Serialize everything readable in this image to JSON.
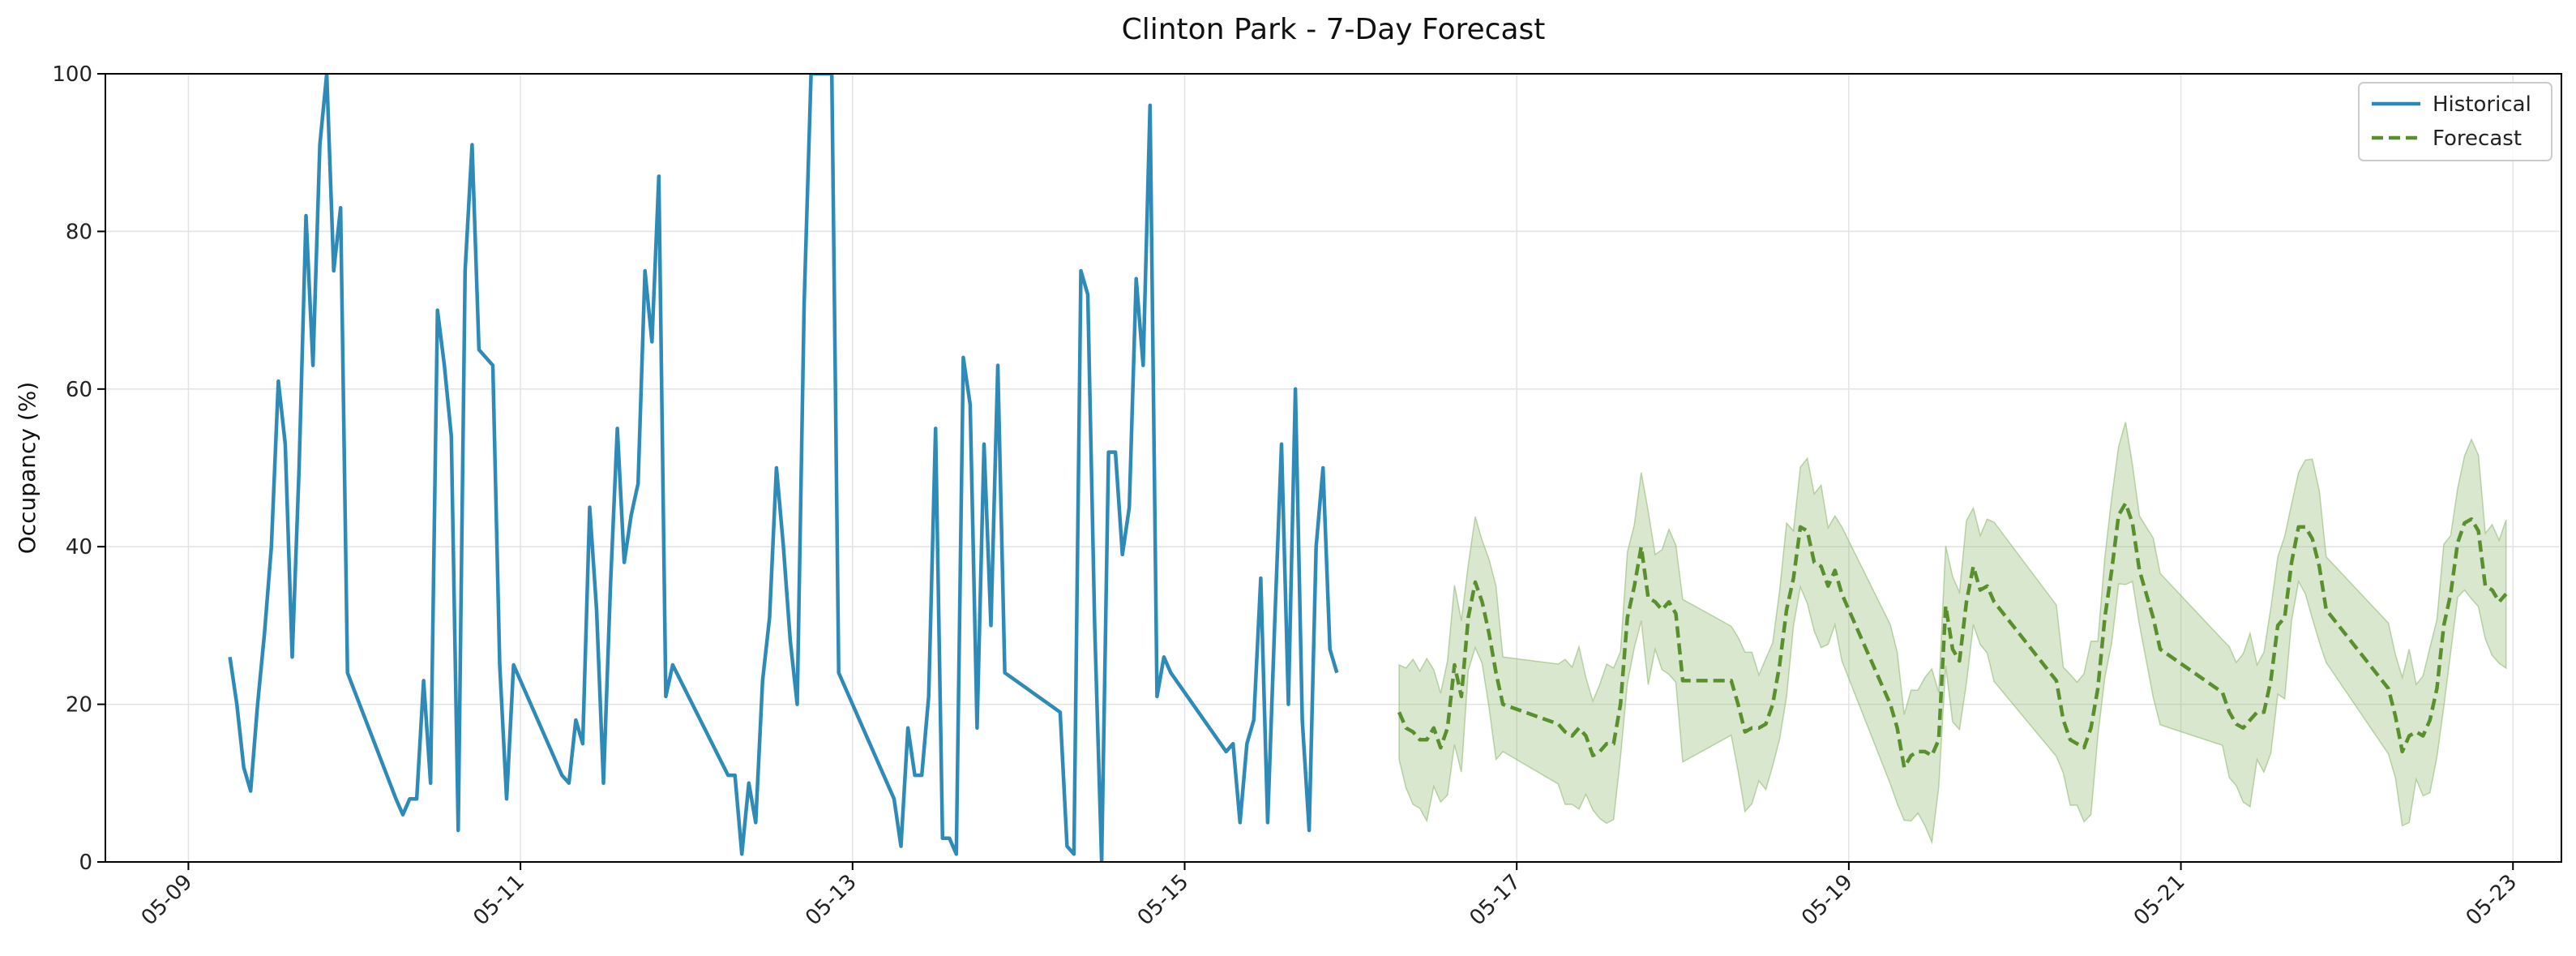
{
  "chart_data": {
    "type": "line",
    "title": "Clinton Park - 7-Day Forecast",
    "xlabel": "",
    "ylabel": "Occupancy (%)",
    "ylim": [
      0,
      100
    ],
    "xlim": [
      "2025-05-08 12:00",
      "2025-05-23 07:00"
    ],
    "x_ticks": [
      "05-09",
      "05-11",
      "05-13",
      "05-15",
      "05-17",
      "05-19",
      "05-21",
      "05-23"
    ],
    "y_ticks": [
      0,
      20,
      40,
      60,
      80,
      100
    ],
    "grid": true,
    "legend_position": "top-right",
    "colors": {
      "historical": "#2e8bb8",
      "forecast": "#5a8f2e",
      "band": "#8ab56a"
    },
    "series": [
      {
        "name": "Historical",
        "style": "solid",
        "points": [
          [
            "2025-05-09 06:00",
            26
          ],
          [
            "2025-05-09 07:00",
            20
          ],
          [
            "2025-05-09 08:00",
            12
          ],
          [
            "2025-05-09 09:00",
            9
          ],
          [
            "2025-05-09 10:00",
            20
          ],
          [
            "2025-05-09 11:00",
            29
          ],
          [
            "2025-05-09 12:00",
            40
          ],
          [
            "2025-05-09 13:00",
            61
          ],
          [
            "2025-05-09 14:00",
            53
          ],
          [
            "2025-05-09 15:00",
            26
          ],
          [
            "2025-05-09 16:00",
            50
          ],
          [
            "2025-05-09 17:00",
            82
          ],
          [
            "2025-05-09 18:00",
            63
          ],
          [
            "2025-05-09 19:00",
            91
          ],
          [
            "2025-05-09 20:00",
            100
          ],
          [
            "2025-05-09 21:00",
            75
          ],
          [
            "2025-05-09 22:00",
            83
          ],
          [
            "2025-05-09 23:00",
            24
          ],
          [
            "2025-05-10 06:00",
            8
          ],
          [
            "2025-05-10 07:00",
            6
          ],
          [
            "2025-05-10 08:00",
            8
          ],
          [
            "2025-05-10 09:00",
            8
          ],
          [
            "2025-05-10 10:00",
            23
          ],
          [
            "2025-05-10 11:00",
            10
          ],
          [
            "2025-05-10 12:00",
            70
          ],
          [
            "2025-05-10 13:00",
            63
          ],
          [
            "2025-05-10 14:00",
            54
          ],
          [
            "2025-05-10 15:00",
            4
          ],
          [
            "2025-05-10 16:00",
            75
          ],
          [
            "2025-05-10 17:00",
            91
          ],
          [
            "2025-05-10 18:00",
            65
          ],
          [
            "2025-05-10 20:00",
            63
          ],
          [
            "2025-05-10 21:00",
            25
          ],
          [
            "2025-05-10 22:00",
            8
          ],
          [
            "2025-05-10 23:00",
            25
          ],
          [
            "2025-05-11 06:00",
            11
          ],
          [
            "2025-05-11 07:00",
            10
          ],
          [
            "2025-05-11 08:00",
            18
          ],
          [
            "2025-05-11 09:00",
            15
          ],
          [
            "2025-05-11 10:00",
            45
          ],
          [
            "2025-05-11 11:00",
            32
          ],
          [
            "2025-05-11 12:00",
            10
          ],
          [
            "2025-05-11 13:00",
            35
          ],
          [
            "2025-05-11 14:00",
            55
          ],
          [
            "2025-05-11 15:00",
            38
          ],
          [
            "2025-05-11 16:00",
            44
          ],
          [
            "2025-05-11 17:00",
            48
          ],
          [
            "2025-05-11 18:00",
            75
          ],
          [
            "2025-05-11 19:00",
            66
          ],
          [
            "2025-05-11 20:00",
            87
          ],
          [
            "2025-05-11 21:00",
            21
          ],
          [
            "2025-05-11 22:00",
            25
          ],
          [
            "2025-05-12 06:00",
            11
          ],
          [
            "2025-05-12 07:00",
            11
          ],
          [
            "2025-05-12 08:00",
            1
          ],
          [
            "2025-05-12 09:00",
            10
          ],
          [
            "2025-05-12 10:00",
            5
          ],
          [
            "2025-05-12 11:00",
            23
          ],
          [
            "2025-05-12 12:00",
            31
          ],
          [
            "2025-05-12 13:00",
            50
          ],
          [
            "2025-05-12 14:00",
            40
          ],
          [
            "2025-05-12 15:00",
            28
          ],
          [
            "2025-05-12 16:00",
            20
          ],
          [
            "2025-05-12 17:00",
            71
          ],
          [
            "2025-05-12 18:00",
            100
          ],
          [
            "2025-05-12 19:00",
            100
          ],
          [
            "2025-05-12 20:00",
            100
          ],
          [
            "2025-05-12 21:00",
            100
          ],
          [
            "2025-05-12 22:00",
            24
          ],
          [
            "2025-05-13 06:00",
            8
          ],
          [
            "2025-05-13 07:00",
            2
          ],
          [
            "2025-05-13 08:00",
            17
          ],
          [
            "2025-05-13 09:00",
            11
          ],
          [
            "2025-05-13 10:00",
            11
          ],
          [
            "2025-05-13 11:00",
            21
          ],
          [
            "2025-05-13 12:00",
            55
          ],
          [
            "2025-05-13 13:00",
            3
          ],
          [
            "2025-05-13 14:00",
            3
          ],
          [
            "2025-05-13 15:00",
            1
          ],
          [
            "2025-05-13 16:00",
            64
          ],
          [
            "2025-05-13 17:00",
            58
          ],
          [
            "2025-05-13 18:00",
            17
          ],
          [
            "2025-05-13 19:00",
            53
          ],
          [
            "2025-05-13 20:00",
            30
          ],
          [
            "2025-05-13 21:00",
            63
          ],
          [
            "2025-05-13 22:00",
            24
          ],
          [
            "2025-05-14 06:00",
            19
          ],
          [
            "2025-05-14 07:00",
            2
          ],
          [
            "2025-05-14 08:00",
            1
          ],
          [
            "2025-05-14 09:00",
            75
          ],
          [
            "2025-05-14 10:00",
            72
          ],
          [
            "2025-05-14 11:00",
            30
          ],
          [
            "2025-05-14 12:00",
            0
          ],
          [
            "2025-05-14 13:00",
            52
          ],
          [
            "2025-05-14 14:00",
            52
          ],
          [
            "2025-05-14 15:00",
            39
          ],
          [
            "2025-05-14 16:00",
            45
          ],
          [
            "2025-05-14 17:00",
            74
          ],
          [
            "2025-05-14 18:00",
            63
          ],
          [
            "2025-05-14 19:00",
            96
          ],
          [
            "2025-05-14 20:00",
            21
          ],
          [
            "2025-05-14 21:00",
            26
          ],
          [
            "2025-05-14 22:00",
            24
          ],
          [
            "2025-05-15 06:00",
            14
          ],
          [
            "2025-05-15 07:00",
            15
          ],
          [
            "2025-05-15 08:00",
            5
          ],
          [
            "2025-05-15 09:00",
            15
          ],
          [
            "2025-05-15 10:00",
            18
          ],
          [
            "2025-05-15 11:00",
            36
          ],
          [
            "2025-05-15 12:00",
            5
          ],
          [
            "2025-05-15 13:00",
            30
          ],
          [
            "2025-05-15 14:00",
            53
          ],
          [
            "2025-05-15 15:00",
            20
          ],
          [
            "2025-05-15 16:00",
            60
          ],
          [
            "2025-05-15 17:00",
            18
          ],
          [
            "2025-05-15 18:00",
            4
          ],
          [
            "2025-05-15 19:00",
            40
          ],
          [
            "2025-05-15 20:00",
            50
          ],
          [
            "2025-05-15 21:00",
            27
          ],
          [
            "2025-05-15 22:00",
            24
          ]
        ]
      },
      {
        "name": "Forecast",
        "style": "dashed",
        "points": [
          [
            "2025-05-16 07:00",
            19
          ],
          [
            "2025-05-16 08:00",
            17
          ],
          [
            "2025-05-16 09:00",
            16.5
          ],
          [
            "2025-05-16 10:00",
            15.5
          ],
          [
            "2025-05-16 11:00",
            15.5
          ],
          [
            "2025-05-16 12:00",
            17
          ],
          [
            "2025-05-16 13:00",
            14.5
          ],
          [
            "2025-05-16 14:00",
            17
          ],
          [
            "2025-05-16 15:00",
            25
          ],
          [
            "2025-05-16 16:00",
            21
          ],
          [
            "2025-05-16 17:00",
            31
          ],
          [
            "2025-05-16 18:00",
            35.5
          ],
          [
            "2025-05-16 19:00",
            33
          ],
          [
            "2025-05-16 20:00",
            29
          ],
          [
            "2025-05-16 21:00",
            24
          ],
          [
            "2025-05-16 22:00",
            20
          ],
          [
            "2025-05-17 06:00",
            17.5
          ],
          [
            "2025-05-17 07:00",
            16.5
          ],
          [
            "2025-05-17 08:00",
            16
          ],
          [
            "2025-05-17 09:00",
            17
          ],
          [
            "2025-05-17 10:00",
            16
          ],
          [
            "2025-05-17 11:00",
            13.5
          ],
          [
            "2025-05-17 12:00",
            14
          ],
          [
            "2025-05-17 13:00",
            15
          ],
          [
            "2025-05-17 14:00",
            15
          ],
          [
            "2025-05-17 15:00",
            20
          ],
          [
            "2025-05-17 16:00",
            31
          ],
          [
            "2025-05-17 17:00",
            35
          ],
          [
            "2025-05-17 18:00",
            40
          ],
          [
            "2025-05-17 19:00",
            33.5
          ],
          [
            "2025-05-17 20:00",
            33
          ],
          [
            "2025-05-17 21:00",
            32
          ],
          [
            "2025-05-17 22:00",
            33
          ],
          [
            "2025-05-17 23:00",
            31.5
          ],
          [
            "2025-05-18 00:00",
            23
          ],
          [
            "2025-05-18 06:00",
            23
          ],
          [
            "2025-05-18 07:00",
            23
          ],
          [
            "2025-05-18 08:00",
            20
          ],
          [
            "2025-05-18 09:00",
            16.5
          ],
          [
            "2025-05-18 10:00",
            17
          ],
          [
            "2025-05-18 11:00",
            17
          ],
          [
            "2025-05-18 12:00",
            17.5
          ],
          [
            "2025-05-18 13:00",
            20
          ],
          [
            "2025-05-18 14:00",
            25
          ],
          [
            "2025-05-18 15:00",
            32
          ],
          [
            "2025-05-18 16:00",
            36
          ],
          [
            "2025-05-18 17:00",
            42.5
          ],
          [
            "2025-05-18 18:00",
            42
          ],
          [
            "2025-05-18 19:00",
            38
          ],
          [
            "2025-05-18 20:00",
            37.5
          ],
          [
            "2025-05-18 21:00",
            35
          ],
          [
            "2025-05-18 22:00",
            37
          ],
          [
            "2025-05-18 23:00",
            34
          ],
          [
            "2025-05-19 06:00",
            20
          ],
          [
            "2025-05-19 07:00",
            17
          ],
          [
            "2025-05-19 08:00",
            12
          ],
          [
            "2025-05-19 09:00",
            13.5
          ],
          [
            "2025-05-19 10:00",
            14
          ],
          [
            "2025-05-19 11:00",
            14
          ],
          [
            "2025-05-19 12:00",
            13.5
          ],
          [
            "2025-05-19 13:00",
            15.5
          ],
          [
            "2025-05-19 14:00",
            32.5
          ],
          [
            "2025-05-19 15:00",
            27
          ],
          [
            "2025-05-19 16:00",
            25.5
          ],
          [
            "2025-05-19 17:00",
            33
          ],
          [
            "2025-05-19 18:00",
            37.5
          ],
          [
            "2025-05-19 19:00",
            34.5
          ],
          [
            "2025-05-19 20:00",
            35
          ],
          [
            "2025-05-19 21:00",
            33
          ],
          [
            "2025-05-20 06:00",
            23
          ],
          [
            "2025-05-20 07:00",
            18
          ],
          [
            "2025-05-20 08:00",
            15.5
          ],
          [
            "2025-05-20 09:00",
            15
          ],
          [
            "2025-05-20 10:00",
            14.5
          ],
          [
            "2025-05-20 11:00",
            17
          ],
          [
            "2025-05-20 12:00",
            22
          ],
          [
            "2025-05-20 13:00",
            31
          ],
          [
            "2025-05-20 14:00",
            37
          ],
          [
            "2025-05-20 15:00",
            44
          ],
          [
            "2025-05-20 16:00",
            45.5
          ],
          [
            "2025-05-20 17:00",
            43
          ],
          [
            "2025-05-20 18:00",
            37
          ],
          [
            "2025-05-20 19:00",
            34
          ],
          [
            "2025-05-20 20:00",
            31
          ],
          [
            "2025-05-20 21:00",
            27
          ],
          [
            "2025-05-21 06:00",
            21.5
          ],
          [
            "2025-05-21 07:00",
            19
          ],
          [
            "2025-05-21 08:00",
            17.5
          ],
          [
            "2025-05-21 09:00",
            17
          ],
          [
            "2025-05-21 10:00",
            18
          ],
          [
            "2025-05-21 11:00",
            19
          ],
          [
            "2025-05-21 12:00",
            19
          ],
          [
            "2025-05-21 13:00",
            23
          ],
          [
            "2025-05-21 14:00",
            30
          ],
          [
            "2025-05-21 15:00",
            31
          ],
          [
            "2025-05-21 16:00",
            38
          ],
          [
            "2025-05-21 17:00",
            42.5
          ],
          [
            "2025-05-21 18:00",
            42.5
          ],
          [
            "2025-05-21 19:00",
            41
          ],
          [
            "2025-05-21 20:00",
            37.5
          ],
          [
            "2025-05-21 21:00",
            32
          ],
          [
            "2025-05-22 06:00",
            22
          ],
          [
            "2025-05-22 07:00",
            18.5
          ],
          [
            "2025-05-22 08:00",
            14
          ],
          [
            "2025-05-22 09:00",
            16
          ],
          [
            "2025-05-22 10:00",
            16.5
          ],
          [
            "2025-05-22 11:00",
            16
          ],
          [
            "2025-05-22 12:00",
            18
          ],
          [
            "2025-05-22 13:00",
            22
          ],
          [
            "2025-05-22 14:00",
            30
          ],
          [
            "2025-05-22 15:00",
            34
          ],
          [
            "2025-05-22 16:00",
            40.5
          ],
          [
            "2025-05-22 17:00",
            43
          ],
          [
            "2025-05-22 18:00",
            43.5
          ],
          [
            "2025-05-22 19:00",
            42
          ],
          [
            "2025-05-22 20:00",
            35
          ],
          [
            "2025-05-22 21:00",
            34.5
          ],
          [
            "2025-05-22 22:00",
            33
          ],
          [
            "2025-05-22 23:00",
            34
          ]
        ]
      }
    ]
  }
}
